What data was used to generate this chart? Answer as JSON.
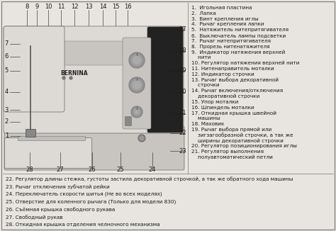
{
  "bg_color": "#e8e5e0",
  "border_color": "#777777",
  "text_color": "#1a1a1a",
  "machine_body_color": "#c8c5c0",
  "machine_light_color": "#dddad5",
  "machine_dark_color": "#a0a098",
  "machine_black": "#222222",
  "right_labels_grouped": [
    [
      "1.  Игольная пластина"
    ],
    [
      "2.  Лапка"
    ],
    [
      "3.  Винт крепления иглы"
    ],
    [
      "4.  Рычаг крепления лапки"
    ],
    [
      "5.  Натяжитель нитепритягивателя"
    ],
    [
      "6.  Выключатель лампы подсветки"
    ],
    [
      "7.  Рычаг нитепритягивателя"
    ],
    [
      "8.  Прорезь нитенатяжителя"
    ],
    [
      "9.  Индикатор натяжения верхней",
      "    нити"
    ],
    [
      "10. Регулятор натяжения верхней нити"
    ],
    [
      "11. Нитенаправитель моталки"
    ],
    [
      "12. Индикатор строчки"
    ],
    [
      "13. Рычаг выбора декоративной",
      "    строчки"
    ],
    [
      "14. Рычаг включения/отключения",
      "    декоративной строчки"
    ],
    [
      "15. Упор моталки"
    ],
    [
      "16. Шпиндель моталки"
    ],
    [
      "17. Откидная крышка швейной",
      "    машины"
    ],
    [
      "18. Маховик"
    ],
    [
      "19. Рычаг выбора прямой или",
      "    зигзагообразной строчки, а так же",
      "    ширины декоративной строчки"
    ],
    [
      "20. Регулятор позиционирования иглы"
    ],
    [
      "21. Регулятор выполнения",
      "    полуавтоматический петли"
    ]
  ],
  "bottom_labels": [
    "22. Регулятор длины стежка, густоты застила декоративной строчкой, а так же обратного хода машины",
    "23. Рычаг отключения зубчатой рейки",
    "24. Переключатель скорости шитья (Не во всех моделях)",
    "25. Отверстие для коленного рычага (Только для модели 830)",
    "26. Съёмная крышка свободного рукава",
    "27. Свободный рукав",
    "28. Откидная крышка отделения челночного механизма"
  ],
  "font_size_labels": 5.2,
  "font_size_numbers": 6.0
}
